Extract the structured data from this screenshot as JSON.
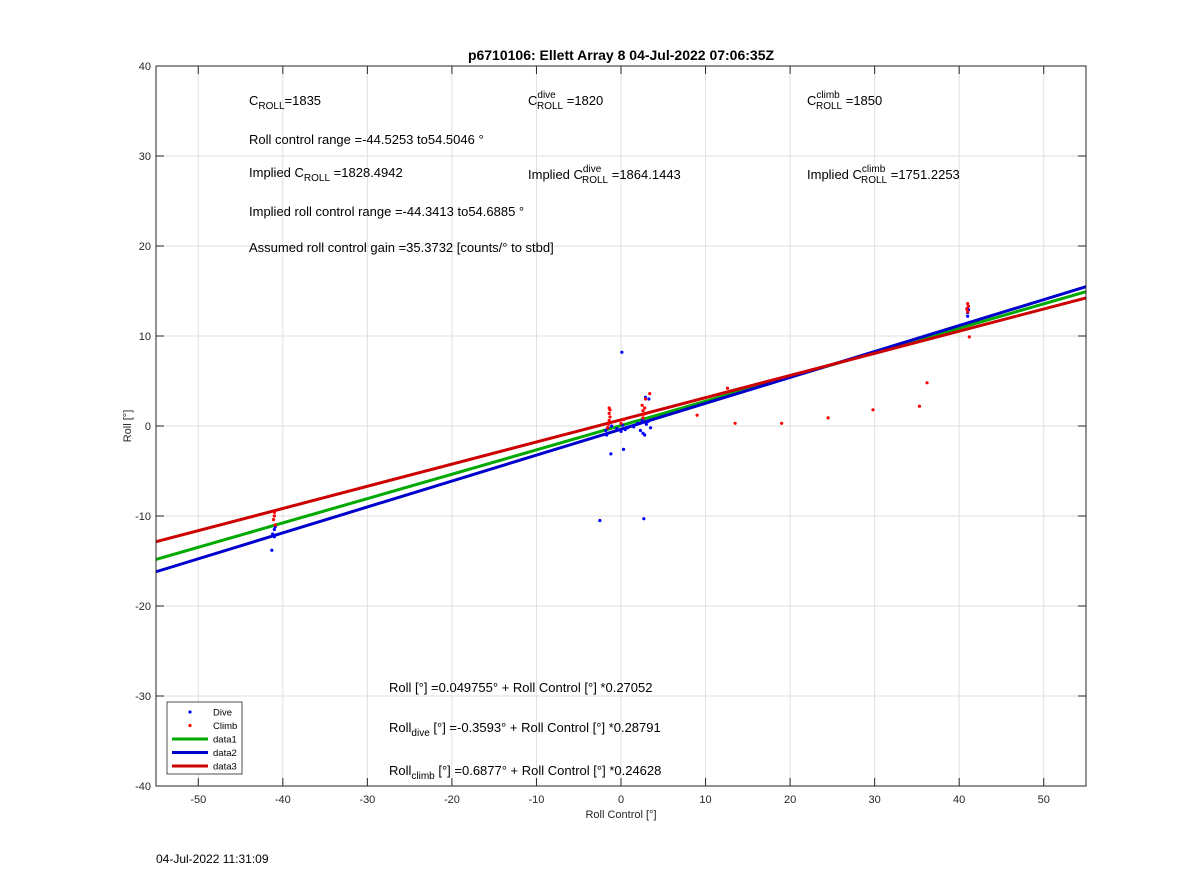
{
  "chart_data": {
    "type": "scatter",
    "title": "p6710106: Ellett Array 8 04-Jul-2022 07:06:35Z",
    "xlabel": "Roll Control [°]",
    "ylabel": "Roll [°]",
    "xlim": [
      -55,
      55
    ],
    "ylim": [
      -40,
      40
    ],
    "xticks": [
      -50,
      -40,
      -30,
      -20,
      -10,
      0,
      10,
      20,
      30,
      40,
      50
    ],
    "yticks": [
      -40,
      -30,
      -20,
      -10,
      0,
      10,
      20,
      30,
      40
    ],
    "grid": true,
    "legend_position": "bottom-left",
    "series": [
      {
        "name": "Dive",
        "kind": "points",
        "color": "#0000ff",
        "points": [
          [
            -41,
            -11.5
          ],
          [
            -41.2,
            -12.0
          ],
          [
            -41,
            -12.3
          ],
          [
            -41.3,
            -13.8
          ],
          [
            -40.9,
            -11.2
          ],
          [
            -2.5,
            -10.5
          ],
          [
            2.7,
            -10.3
          ],
          [
            0.1,
            8.2
          ],
          [
            -1.2,
            -3.1
          ],
          [
            0.3,
            -2.6
          ],
          [
            -1.8,
            -0.5
          ],
          [
            -1.5,
            -0.2
          ],
          [
            -1.7,
            -1.0
          ],
          [
            -1.1,
            0.0
          ],
          [
            -0.5,
            -0.3
          ],
          [
            0,
            -0.6
          ],
          [
            0.2,
            0.1
          ],
          [
            0.5,
            -0.4
          ],
          [
            0.8,
            -0.2
          ],
          [
            1.5,
            -0.1
          ],
          [
            2.0,
            0.3
          ],
          [
            2.3,
            -0.5
          ],
          [
            2.6,
            -0.8
          ],
          [
            2.8,
            -1.0
          ],
          [
            3.0,
            0.2
          ],
          [
            3.2,
            0.5
          ],
          [
            3.5,
            -0.2
          ],
          [
            2.5,
            0.6
          ],
          [
            2.9,
            3.2
          ],
          [
            3.3,
            3.0
          ],
          [
            41,
            12.2
          ],
          [
            41,
            12.6
          ],
          [
            41.1,
            12.9
          ],
          [
            41,
            13.1
          ]
        ]
      },
      {
        "name": "Climb",
        "kind": "points",
        "color": "#ff0000",
        "points": [
          [
            -41,
            -9.6
          ],
          [
            -41,
            -10.0
          ],
          [
            -41.1,
            -10.4
          ],
          [
            -40.9,
            -11.0
          ],
          [
            -1.5,
            0.2
          ],
          [
            -1.4,
            0.6
          ],
          [
            -1.3,
            1.0
          ],
          [
            -1.4,
            1.4
          ],
          [
            -1.3,
            1.8
          ],
          [
            -1.4,
            2.0
          ],
          [
            -1.6,
            -0.2
          ],
          [
            0.0,
            0.3
          ],
          [
            0.3,
            0.7
          ],
          [
            2.6,
            0.9
          ],
          [
            2.7,
            1.3
          ],
          [
            2.6,
            1.7
          ],
          [
            2.8,
            2.0
          ],
          [
            2.5,
            2.3
          ],
          [
            3.4,
            3.6
          ],
          [
            2.9,
            3.0
          ],
          [
            9.0,
            1.2
          ],
          [
            12.6,
            4.2
          ],
          [
            13.5,
            0.3
          ],
          [
            19.0,
            0.3
          ],
          [
            24.5,
            0.9
          ],
          [
            29.8,
            1.8
          ],
          [
            35.3,
            2.2
          ],
          [
            36.2,
            4.8
          ],
          [
            41,
            13.6
          ],
          [
            41.1,
            13.3
          ],
          [
            40.9,
            13.0
          ],
          [
            41,
            12.7
          ],
          [
            41.2,
            9.9
          ]
        ]
      },
      {
        "name": "data1",
        "kind": "line",
        "color": "#00aa00",
        "intercept": 0.049755,
        "slope": 0.27052
      },
      {
        "name": "data2",
        "kind": "line",
        "color": "#0000cc",
        "intercept": -0.3593,
        "slope": 0.28791
      },
      {
        "name": "data3",
        "kind": "line",
        "color": "#cc0000",
        "intercept": 0.6877,
        "slope": 0.24628
      }
    ],
    "annotations": {
      "c_roll": {
        "base": "C",
        "sub": "ROLL",
        "tail": "=1835"
      },
      "c_dive": {
        "base": "C",
        "sup": "dive",
        "sub": "ROLL",
        "tail": " =1820"
      },
      "c_climb": {
        "base": "C",
        "sup": "climb",
        "sub": "ROLL",
        "tail": " =1850"
      },
      "roll_range": "Roll control range =-44.5253 to54.5046 °",
      "implied_c_roll": {
        "base": "Implied C",
        "sub": "ROLL",
        "tail": " =1828.4942"
      },
      "implied_c_dive": {
        "base": "Implied C",
        "sup": "dive",
        "sub": "ROLL",
        "tail": " =1864.1443"
      },
      "implied_c_climb": {
        "base": "Implied C",
        "sup": "climb",
        "sub": "ROLL",
        "tail": " =1751.2253"
      },
      "implied_range": "Implied roll control range =-44.3413 to54.6885 °",
      "gain": "Assumed roll control gain =35.3732 [counts/° to stbd]",
      "eq_all": "Roll [°] =0.049755° + Roll Control [°] *0.27052",
      "eq_dive": {
        "base": "Roll",
        "sub": "dive",
        "tail": " [°] =-0.3593° + Roll Control [°] *0.28791"
      },
      "eq_climb": {
        "base": "Roll",
        "sub": "climb",
        "tail": " [°] =0.6877° + Roll Control [°] *0.24628"
      }
    }
  },
  "footer_timestamp": "04-Jul-2022 11:31:09"
}
